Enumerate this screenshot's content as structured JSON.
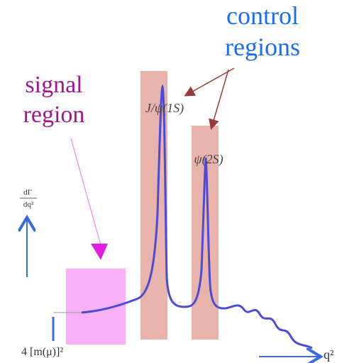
{
  "annotations": {
    "control_regions": [
      "control",
      "regions"
    ],
    "signal_region": [
      "signal",
      "region"
    ]
  },
  "peaks": [
    {
      "label": "J/ψ(1S)"
    },
    {
      "label": "ψ(2S)"
    }
  ],
  "axes": {
    "y_label": {
      "numerator": "dΓ",
      "denominator": "dq²"
    },
    "x_label": "q²",
    "x_origin_label": "4 [m(μ)]²"
  }
}
